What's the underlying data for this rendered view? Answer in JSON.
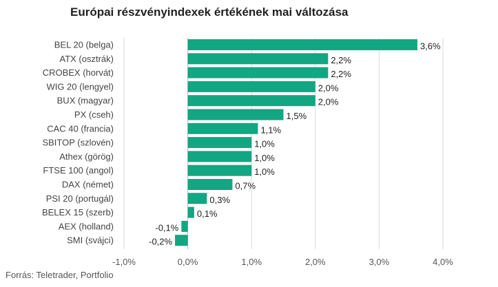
{
  "chart_data": {
    "type": "bar",
    "orientation": "horizontal",
    "title": "Európai részvényindexek értékének mai változása",
    "source": "Forrás: Teletrader, Portfolio",
    "categories": [
      "BEL 20 (belga)",
      "ATX (osztrák)",
      "CROBEX (horvát)",
      "WIG 20 (lengyel)",
      "BUX (magyar)",
      "PX (cseh)",
      "CAC 40 (francia)",
      "SBITOP (szlovén)",
      "Athex (görög)",
      "FTSE 100 (angol)",
      "DAX (német)",
      "PSI 20 (portugál)",
      "BELEX 15 (szerb)",
      "AEX (holland)",
      "SMI (svájci)"
    ],
    "values": [
      3.6,
      2.2,
      2.2,
      2.0,
      2.0,
      1.5,
      1.1,
      1.0,
      1.0,
      1.0,
      0.7,
      0.3,
      0.1,
      -0.1,
      -0.2
    ],
    "value_labels": [
      "3,6%",
      "2,2%",
      "2,2%",
      "2,0%",
      "2,0%",
      "1,5%",
      "1,1%",
      "1,0%",
      "1,0%",
      "1,0%",
      "0,7%",
      "0,3%",
      "0,1%",
      "-0,1%",
      "-0,2%"
    ],
    "xlim": [
      -1.0,
      4.0
    ],
    "x_ticks": [
      -1.0,
      0.0,
      1.0,
      2.0,
      3.0,
      4.0
    ],
    "x_tick_labels": [
      "-1,0%",
      "0,0%",
      "1,0%",
      "2,0%",
      "3,0%",
      "4,0%"
    ],
    "xlabel": "",
    "ylabel": "",
    "grid": "vertical",
    "legend": "none",
    "colors": {
      "bar": "#12a683",
      "grid": "#d9d9d9",
      "zero_line": "#bbbbbb"
    }
  }
}
